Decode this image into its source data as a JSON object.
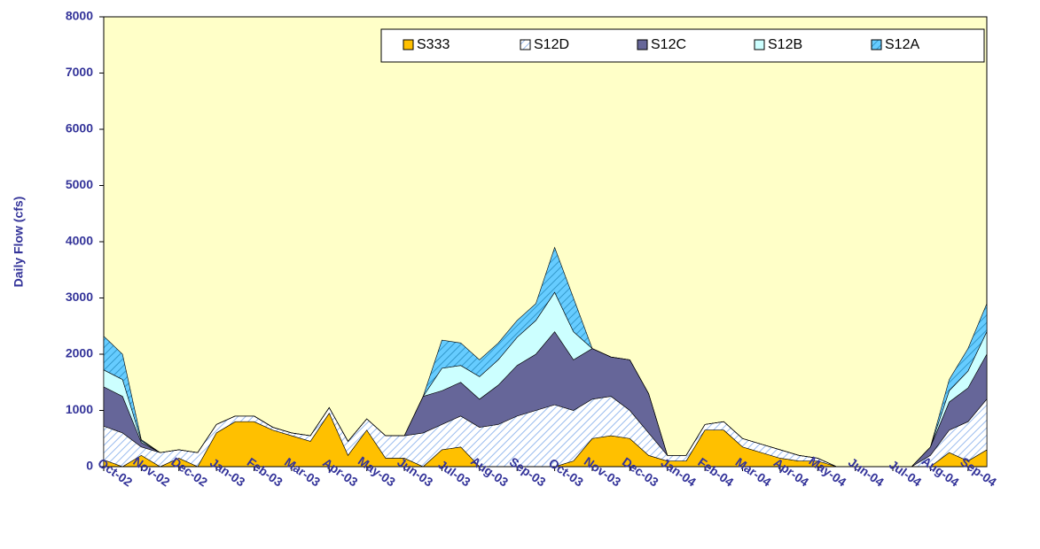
{
  "chart_data": {
    "type": "stacked-area",
    "y_label": "Daily Flow (cfs)",
    "categories": [
      "Oct-02",
      null,
      "Nov-02",
      null,
      "Dec-02",
      null,
      "Jan-03",
      null,
      "Feb-03",
      null,
      "Mar-03",
      null,
      "Apr-03",
      null,
      "May-03",
      null,
      "Jun-03",
      null,
      "Jul-03",
      null,
      "Aug-03",
      null,
      "Sep-03",
      null,
      "Oct-03",
      null,
      "Nov-03",
      null,
      "Dec-03",
      null,
      "Jan-04",
      null,
      "Feb-04",
      null,
      "Mar-04",
      null,
      "Apr-04",
      null,
      "May-04",
      null,
      "Jun-04",
      null,
      "Jul-04",
      null,
      "Aug-04",
      null,
      "Sep-04",
      null
    ],
    "series": [
      {
        "name": "S333",
        "color": "#ffc000",
        "hatch": false,
        "values": [
          120,
          0,
          200,
          0,
          150,
          0,
          600,
          800,
          800,
          650,
          550,
          450,
          950,
          200,
          650,
          150,
          150,
          0,
          300,
          350,
          0,
          0,
          0,
          0,
          0,
          100,
          500,
          550,
          500,
          200,
          100,
          100,
          650,
          650,
          350,
          250,
          150,
          100,
          100,
          0,
          0,
          0,
          0,
          0,
          0,
          250,
          100,
          300
        ]
      },
      {
        "name": "S12D",
        "color": "#99bbee",
        "hatch": true,
        "values": [
          600,
          600,
          150,
          250,
          150,
          250,
          150,
          100,
          100,
          50,
          50,
          100,
          100,
          250,
          200,
          400,
          400,
          600,
          450,
          550,
          700,
          750,
          900,
          1000,
          1100,
          900,
          700,
          700,
          500,
          400,
          100,
          100,
          100,
          150,
          150,
          150,
          150,
          100,
          50,
          0,
          0,
          0,
          0,
          0,
          200,
          400,
          700,
          900
        ]
      },
      {
        "name": "S12C",
        "color": "#666699",
        "hatch": false,
        "values": [
          700,
          650,
          80,
          0,
          0,
          0,
          0,
          0,
          0,
          0,
          0,
          0,
          0,
          0,
          0,
          0,
          0,
          650,
          600,
          600,
          500,
          700,
          900,
          1000,
          1300,
          900,
          900,
          700,
          900,
          700,
          0,
          0,
          0,
          0,
          0,
          0,
          0,
          0,
          0,
          0,
          0,
          0,
          0,
          0,
          150,
          500,
          600,
          800
        ]
      },
      {
        "name": "S12B",
        "color": "#ccffff",
        "hatch": false,
        "values": [
          300,
          300,
          30,
          0,
          0,
          0,
          0,
          0,
          0,
          0,
          0,
          0,
          0,
          0,
          0,
          0,
          0,
          0,
          400,
          300,
          400,
          450,
          500,
          600,
          700,
          500,
          0,
          0,
          0,
          0,
          0,
          0,
          0,
          0,
          0,
          0,
          0,
          0,
          0,
          0,
          0,
          0,
          0,
          0,
          0,
          200,
          300,
          400
        ]
      },
      {
        "name": "S12A",
        "color": "#3399cc",
        "hatch": true,
        "values": [
          600,
          450,
          20,
          0,
          0,
          0,
          0,
          0,
          0,
          0,
          0,
          0,
          0,
          0,
          0,
          0,
          0,
          0,
          500,
          400,
          300,
          300,
          300,
          300,
          800,
          600,
          0,
          0,
          0,
          0,
          0,
          0,
          0,
          0,
          0,
          0,
          0,
          0,
          0,
          0,
          0,
          0,
          0,
          0,
          0,
          200,
          400,
          500
        ]
      }
    ],
    "ylim": [
      0,
      8000
    ],
    "yticks": [
      0,
      1000,
      2000,
      3000,
      4000,
      5000,
      6000,
      7000,
      8000
    ],
    "plot_background": "#ffffc8"
  }
}
